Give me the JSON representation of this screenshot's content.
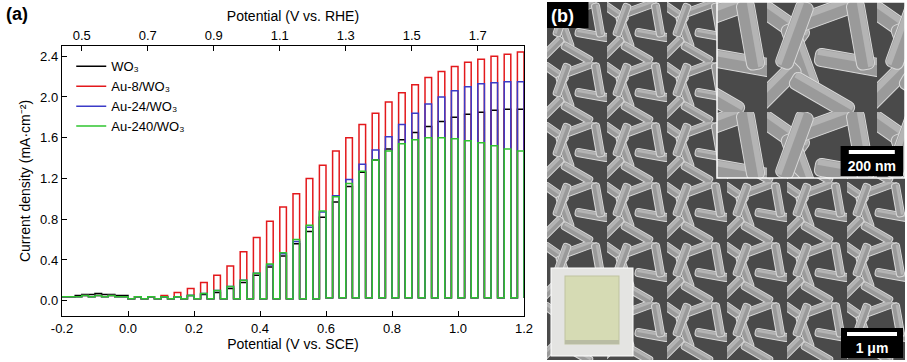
{
  "chart_data": {
    "type": "line",
    "panel_label": "(a)",
    "x_label": "Potential (V vs. SCE)",
    "x2_label": "Potential (V vs. RHE)",
    "y_label": "Current density (mA·cm⁻²)",
    "xlim": [
      -0.2,
      1.2
    ],
    "xticks": [
      -0.2,
      {
        "value": 0,
        "label": "0.0"
      },
      0.2,
      0.4,
      0.6,
      0.8,
      {
        "value": 1,
        "label": "1.0"
      },
      1.2
    ],
    "x2lim": [
      0.44,
      1.84
    ],
    "x2ticks": [
      0.5,
      0.7,
      0.9,
      1.1,
      1.3,
      1.5,
      1.7
    ],
    "ylim": [
      -0.15,
      2.5
    ],
    "yticks": [
      {
        "value": 0,
        "label": "0.0"
      },
      0.4,
      0.8,
      1.2,
      1.6,
      {
        "value": 2,
        "label": "2.0"
      },
      2.4
    ],
    "grid": false,
    "legend": "upper left",
    "line_style": "step",
    "x": [
      -0.2,
      -0.18,
      -0.16,
      -0.14,
      -0.12,
      -0.1,
      -0.08,
      -0.06,
      -0.04,
      -0.02,
      0,
      0.02,
      0.04,
      0.06,
      0.08,
      0.1,
      0.12,
      0.14,
      0.16,
      0.18,
      0.2,
      0.22,
      0.24,
      0.26,
      0.28,
      0.3,
      0.32,
      0.34,
      0.36,
      0.38,
      0.4,
      0.42,
      0.44,
      0.46,
      0.48,
      0.5,
      0.52,
      0.54,
      0.56,
      0.58,
      0.6,
      0.62,
      0.64,
      0.66,
      0.68,
      0.7,
      0.72,
      0.74,
      0.76,
      0.78,
      0.8,
      0.82,
      0.84,
      0.86,
      0.88,
      0.9,
      0.92,
      0.94,
      0.96,
      0.98,
      1,
      1.02,
      1.04,
      1.06,
      1.08,
      1.1,
      1.12,
      1.14,
      1.16,
      1.18,
      1.2
    ],
    "series": [
      {
        "name": "WO₃",
        "color": "#000000",
        "values": [
          0.04,
          0.04,
          0.05,
          0.06,
          0.06,
          0.07,
          0.06,
          0.06,
          0.05,
          0.05,
          0.02,
          0.04,
          0.02,
          0.04,
          0.02,
          0.04,
          0.02,
          0.04,
          0.02,
          0.05,
          0.02,
          0.06,
          0.02,
          0.08,
          0.02,
          0.12,
          0.02,
          0.18,
          0.02,
          0.25,
          0.02,
          0.33,
          0.02,
          0.44,
          0.02,
          0.56,
          0.02,
          0.68,
          0.02,
          0.82,
          0.03,
          0.97,
          0.03,
          1.12,
          0.03,
          1.26,
          0.03,
          1.38,
          0.03,
          1.49,
          0.03,
          1.58,
          0.03,
          1.65,
          0.03,
          1.71,
          0.03,
          1.76,
          0.03,
          1.8,
          0.03,
          1.83,
          0.03,
          1.85,
          0.03,
          1.87,
          0.03,
          1.88,
          0.03,
          1.88,
          0.03
        ]
      },
      {
        "name": "Au-8/WO₃",
        "color": "#e3191c",
        "values": [
          0.04,
          0.04,
          0.04,
          0.05,
          0.04,
          0.05,
          0.04,
          0.05,
          0.04,
          0.04,
          0.02,
          0.04,
          0.02,
          0.04,
          0.02,
          0.05,
          0.02,
          0.08,
          0.02,
          0.12,
          0.02,
          0.18,
          0.02,
          0.25,
          0.02,
          0.34,
          0.02,
          0.48,
          0.02,
          0.62,
          0.02,
          0.78,
          0.02,
          0.92,
          0.02,
          1.05,
          0.02,
          1.2,
          0.02,
          1.33,
          0.03,
          1.47,
          0.03,
          1.6,
          0.03,
          1.73,
          0.03,
          1.84,
          0.03,
          1.95,
          0.03,
          2.04,
          0.03,
          2.12,
          0.03,
          2.19,
          0.03,
          2.25,
          0.03,
          2.3,
          0.03,
          2.34,
          0.03,
          2.37,
          0.03,
          2.4,
          0.03,
          2.42,
          0.03,
          2.44,
          0.03
        ]
      },
      {
        "name": "Au-24/WO₃",
        "color": "#3b3bc8",
        "values": [
          0.04,
          0.04,
          0.04,
          0.05,
          0.04,
          0.05,
          0.04,
          0.05,
          0.04,
          0.04,
          0.02,
          0.04,
          0.02,
          0.04,
          0.02,
          0.04,
          0.02,
          0.04,
          0.02,
          0.05,
          0.02,
          0.07,
          0.02,
          0.1,
          0.02,
          0.14,
          0.02,
          0.2,
          0.02,
          0.27,
          0.02,
          0.35,
          0.02,
          0.46,
          0.02,
          0.58,
          0.02,
          0.72,
          0.02,
          0.87,
          0.03,
          1.03,
          0.03,
          1.19,
          0.03,
          1.34,
          0.03,
          1.48,
          0.03,
          1.61,
          0.03,
          1.73,
          0.03,
          1.84,
          0.03,
          1.93,
          0.03,
          2.0,
          0.03,
          2.06,
          0.03,
          2.1,
          0.03,
          2.13,
          0.03,
          2.14,
          0.03,
          2.15,
          0.03,
          2.15,
          0.03
        ]
      },
      {
        "name": "Au-240/WO₃",
        "color": "#2fc42f",
        "values": [
          0.04,
          0.04,
          0.04,
          0.05,
          0.04,
          0.05,
          0.04,
          0.05,
          0.04,
          0.04,
          0.02,
          0.04,
          0.02,
          0.04,
          0.02,
          0.04,
          0.02,
          0.04,
          0.02,
          0.05,
          0.02,
          0.07,
          0.02,
          0.1,
          0.02,
          0.14,
          0.02,
          0.2,
          0.02,
          0.27,
          0.02,
          0.36,
          0.02,
          0.47,
          0.02,
          0.6,
          0.02,
          0.74,
          0.02,
          0.88,
          0.03,
          1.02,
          0.03,
          1.15,
          0.03,
          1.27,
          0.03,
          1.38,
          0.03,
          1.47,
          0.03,
          1.54,
          0.03,
          1.58,
          0.03,
          1.6,
          0.03,
          1.6,
          0.03,
          1.59,
          0.03,
          1.57,
          0.03,
          1.55,
          0.03,
          1.52,
          0.03,
          1.49,
          0.03,
          1.47,
          0.03
        ]
      }
    ]
  },
  "image_panel": {
    "label": "(b)",
    "inset_scale_bar": "200 nm",
    "scale_bar": "1 μm"
  }
}
